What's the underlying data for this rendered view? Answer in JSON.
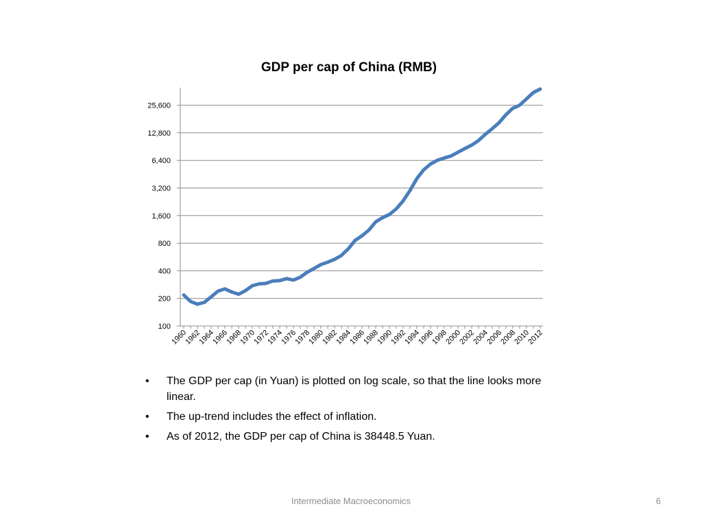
{
  "chart_data": {
    "type": "line",
    "title": "GDP per cap of China (RMB)",
    "xlabel": "",
    "ylabel": "",
    "yscale": "log2",
    "ylim": [
      100,
      38448.5
    ],
    "yticks": [
      "100",
      "200",
      "400",
      "800",
      "1,600",
      "3,200",
      "6,400",
      "12,800",
      "25,600"
    ],
    "ytick_values": [
      100,
      200,
      400,
      800,
      1600,
      3200,
      6400,
      12800,
      25600
    ],
    "xticks": [
      "1960",
      "1962",
      "1964",
      "1966",
      "1968",
      "1970",
      "1972",
      "1974",
      "1976",
      "1978",
      "1980",
      "1982",
      "1984",
      "1986",
      "1988",
      "1990",
      "1992",
      "1994",
      "1996",
      "1998",
      "2000",
      "2002",
      "2004",
      "2006",
      "2008",
      "2010",
      "2012"
    ],
    "grid": true,
    "legend": "none",
    "color": "#4a7ebb",
    "x": [
      1960,
      1961,
      1962,
      1963,
      1964,
      1965,
      1966,
      1967,
      1968,
      1969,
      1970,
      1971,
      1972,
      1973,
      1974,
      1975,
      1976,
      1977,
      1978,
      1979,
      1980,
      1981,
      1982,
      1983,
      1984,
      1985,
      1986,
      1987,
      1988,
      1989,
      1990,
      1991,
      1992,
      1993,
      1994,
      1995,
      1996,
      1997,
      1998,
      1999,
      2000,
      2001,
      2002,
      2003,
      2004,
      2005,
      2006,
      2007,
      2008,
      2009,
      2010,
      2011,
      2012
    ],
    "y": [
      218,
      185,
      173,
      181,
      208,
      240,
      254,
      235,
      222,
      243,
      275,
      288,
      292,
      310,
      313,
      329,
      317,
      341,
      385,
      423,
      468,
      497,
      533,
      588,
      695,
      858,
      963,
      1112,
      1366,
      1519,
      1644,
      1893,
      2311,
      2998,
      4044,
      5046,
      5846,
      6420,
      6796,
      7159,
      7858,
      8622,
      9398,
      10542,
      12336,
      14185,
      16500,
      20169,
      23708,
      25608,
      30015,
      35181,
      38448.5
    ]
  },
  "bullets": [
    "The GDP per cap (in Yuan) is plotted on log scale, so that the line looks more linear.",
    "The up-trend includes the effect of inflation.",
    "As of 2012, the GDP per cap of China is 38448.5 Yuan."
  ],
  "footer": "Intermediate Macroeconomics",
  "page_number": "6"
}
